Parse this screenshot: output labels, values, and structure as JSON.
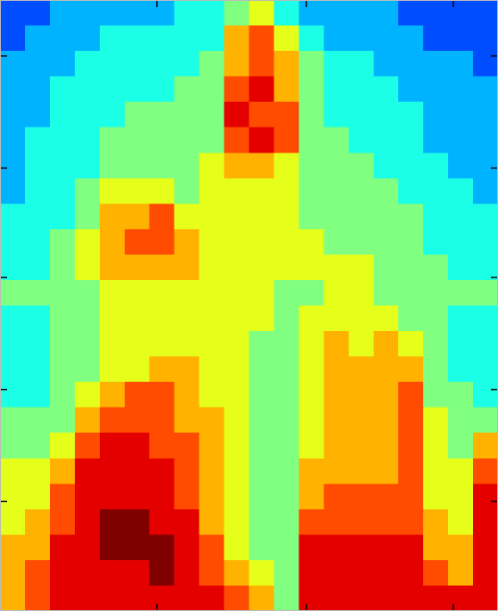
{
  "chart_data": {
    "type": "heatmap",
    "colormap": "jet",
    "zlim": [
      0,
      10
    ],
    "xlim": [
      0,
      20
    ],
    "ylim": [
      0,
      24
    ],
    "xticks": [
      6.3,
      12.3,
      18.2
    ],
    "yticks": [
      4.3,
      8.7,
      13.1,
      17.4,
      21.8
    ],
    "values": [
      [
        2,
        2,
        3,
        3,
        3,
        3,
        3,
        4,
        4,
        5,
        6,
        4,
        3,
        3,
        3,
        3,
        2,
        2,
        2,
        2
      ],
      [
        2,
        3,
        3,
        3,
        4,
        4,
        4,
        4,
        4,
        7,
        8,
        6,
        4,
        3,
        3,
        3,
        3,
        2,
        2,
        2
      ],
      [
        3,
        3,
        3,
        4,
        4,
        4,
        4,
        4,
        5,
        7,
        8,
        7,
        5,
        4,
        4,
        3,
        3,
        3,
        3,
        2
      ],
      [
        3,
        3,
        4,
        4,
        4,
        4,
        4,
        5,
        5,
        8,
        9,
        7,
        5,
        4,
        4,
        4,
        3,
        3,
        3,
        3
      ],
      [
        3,
        3,
        4,
        4,
        4,
        5,
        5,
        5,
        5,
        9,
        8,
        8,
        5,
        4,
        4,
        4,
        4,
        3,
        3,
        3
      ],
      [
        3,
        4,
        4,
        4,
        5,
        5,
        5,
        5,
        5,
        8,
        9,
        8,
        5,
        5,
        4,
        4,
        4,
        3,
        3,
        3
      ],
      [
        3,
        4,
        4,
        4,
        5,
        5,
        5,
        5,
        6,
        7,
        7,
        6,
        5,
        5,
        5,
        4,
        4,
        4,
        3,
        3
      ],
      [
        3,
        4,
        4,
        5,
        6,
        6,
        6,
        5,
        6,
        6,
        6,
        6,
        5,
        5,
        5,
        5,
        4,
        4,
        4,
        3
      ],
      [
        4,
        4,
        4,
        5,
        7,
        7,
        8,
        6,
        6,
        6,
        6,
        6,
        5,
        5,
        5,
        5,
        5,
        4,
        4,
        4
      ],
      [
        4,
        4,
        5,
        6,
        7,
        8,
        8,
        7,
        6,
        6,
        6,
        6,
        6,
        5,
        5,
        5,
        5,
        4,
        4,
        4
      ],
      [
        4,
        4,
        5,
        6,
        7,
        7,
        7,
        7,
        6,
        6,
        6,
        6,
        6,
        6,
        6,
        5,
        5,
        5,
        4,
        4
      ],
      [
        5,
        5,
        5,
        5,
        6,
        6,
        6,
        6,
        6,
        6,
        6,
        5,
        5,
        6,
        6,
        5,
        5,
        5,
        5,
        5
      ],
      [
        4,
        4,
        5,
        5,
        6,
        6,
        6,
        6,
        6,
        6,
        6,
        5,
        6,
        6,
        6,
        6,
        5,
        5,
        4,
        4
      ],
      [
        4,
        4,
        5,
        5,
        6,
        6,
        6,
        6,
        6,
        6,
        5,
        5,
        6,
        7,
        6,
        7,
        6,
        5,
        4,
        4
      ],
      [
        4,
        4,
        5,
        5,
        6,
        6,
        7,
        7,
        6,
        6,
        5,
        5,
        6,
        7,
        7,
        7,
        7,
        5,
        4,
        4
      ],
      [
        4,
        4,
        5,
        6,
        7,
        8,
        8,
        7,
        6,
        6,
        5,
        5,
        6,
        7,
        7,
        7,
        8,
        5,
        5,
        4
      ],
      [
        5,
        5,
        5,
        7,
        8,
        8,
        8,
        7,
        7,
        6,
        5,
        5,
        6,
        7,
        7,
        7,
        8,
        6,
        5,
        5
      ],
      [
        5,
        5,
        6,
        8,
        9,
        9,
        8,
        8,
        7,
        6,
        5,
        5,
        6,
        7,
        7,
        7,
        8,
        6,
        5,
        7
      ],
      [
        6,
        6,
        7,
        9,
        9,
        9,
        9,
        8,
        7,
        6,
        5,
        5,
        7,
        7,
        7,
        7,
        8,
        6,
        6,
        8
      ],
      [
        6,
        6,
        8,
        9,
        9,
        9,
        9,
        8,
        7,
        6,
        5,
        5,
        7,
        8,
        8,
        8,
        8,
        6,
        6,
        9
      ],
      [
        6,
        7,
        8,
        9,
        10,
        10,
        9,
        9,
        7,
        6,
        5,
        5,
        8,
        8,
        8,
        8,
        8,
        7,
        6,
        9
      ],
      [
        7,
        7,
        9,
        9,
        10,
        10,
        10,
        9,
        8,
        6,
        5,
        5,
        9,
        9,
        9,
        9,
        9,
        7,
        7,
        9
      ],
      [
        7,
        8,
        9,
        9,
        9,
        9,
        10,
        9,
        8,
        7,
        6,
        5,
        9,
        9,
        9,
        9,
        9,
        8,
        7,
        9
      ],
      [
        7,
        8,
        9,
        9,
        9,
        9,
        9,
        9,
        9,
        8,
        7,
        5,
        9,
        9,
        9,
        9,
        9,
        9,
        9,
        9
      ]
    ]
  }
}
